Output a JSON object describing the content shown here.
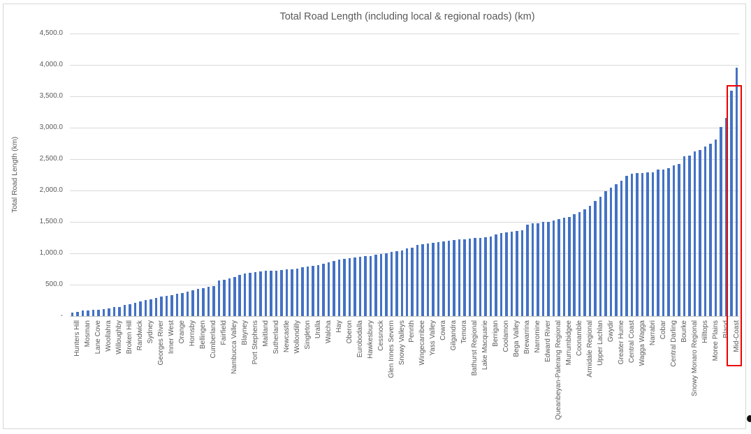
{
  "title": "Total Road Length (including local & regional roads) (km)",
  "y_axis": {
    "title": "Total Road Length (km)",
    "tick_labels": [
      "4,500.0",
      "4,000.0",
      "3,500.0",
      "3,000.0",
      "2,500.0",
      "2,000.0",
      "1,500.0",
      "1,000.0",
      "500.0",
      "-"
    ],
    "min": 0,
    "max": 4500,
    "step": 500
  },
  "highlight": {
    "shape": "red-rectangle",
    "around_label": "Mid-Coast",
    "color": "#ee0000"
  },
  "colors": {
    "bar": "#4472c4",
    "gridline": "#d9d9d9",
    "axis_text": "#595959",
    "frame_border": "#d6d6d6"
  },
  "chart_data": {
    "type": "bar",
    "title": "Total Road Length (including local & regional roads) (km)",
    "xlabel": "",
    "ylabel": "Total Road Length (km)",
    "ylim": [
      0,
      4500
    ],
    "grid": true,
    "legend": false,
    "label_interval": 2,
    "note": "128 ascending bars; axis labels shown under every 2nd bar (bars 2,4,...,128)",
    "x_tick_labels": [
      "Hunters Hill",
      "Mosman",
      "Lane Cove",
      "Woollahra",
      "Willoughby",
      "Broken Hill",
      "Randwick",
      "Sydney",
      "Georges River",
      "Inner West",
      "Orange",
      "Hornsby",
      "Bellingen",
      "Cumberland",
      "Fairfield",
      "Nambucca Valley",
      "Blayney",
      "Port Stephens",
      "Maitland",
      "Sutherland",
      "Newcastle",
      "Wollondilly",
      "Singleton",
      "Uralla",
      "Walcha",
      "Hay",
      "Oberon",
      "Eurobodalla",
      "Hawkesbury",
      "Cessnock",
      "Glen Innes Severn",
      "Snowy Valleys",
      "Penrith",
      "Wingecarribee",
      "Yass Valley",
      "Cowra",
      "Gilgandra",
      "Temora",
      "Bathurst Regional",
      "Lake Macquarie",
      "Berrigan",
      "Coolamon",
      "Bega Valley",
      "Brewarrina",
      "Narromine",
      "Edward River",
      "Queanbeyan-Palerang Regional",
      "Murrumbidgee",
      "Coonamble",
      "Armidale Regional",
      "Upper Lachlan",
      "Gwydir",
      "Greater Hume",
      "Central Coast",
      "Wagga Wagga",
      "Narrabri",
      "Cobar",
      "Central Darling",
      "Bourke",
      "Snowy Monaro Regional",
      "Hilltops",
      "Moree Plains",
      "Bland",
      "Mid-Coast"
    ],
    "values": [
      58,
      72,
      84,
      91,
      96,
      104,
      112,
      122,
      140,
      149,
      177,
      186,
      214,
      232,
      258,
      271,
      289,
      307,
      319,
      333,
      355,
      371,
      392,
      408,
      429,
      444,
      466,
      481,
      563,
      575,
      602,
      621,
      651,
      673,
      695,
      704,
      713,
      719,
      723,
      728,
      734,
      741,
      746,
      753,
      773,
      789,
      801,
      816,
      833,
      853,
      879,
      899,
      913,
      921,
      929,
      941,
      953,
      961,
      973,
      986,
      1006,
      1022,
      1036,
      1049,
      1079,
      1091,
      1131,
      1149,
      1161,
      1169,
      1179,
      1189,
      1199,
      1209,
      1219,
      1226,
      1233,
      1241,
      1249,
      1256,
      1269,
      1299,
      1319,
      1331,
      1341,
      1353,
      1366,
      1459,
      1473,
      1483,
      1496,
      1506,
      1519,
      1541,
      1563,
      1583,
      1619,
      1660,
      1700,
      1760,
      1830,
      1897,
      1993,
      2041,
      2100,
      2151,
      2231,
      2265,
      2274,
      2283,
      2287,
      2291,
      2333,
      2337,
      2356,
      2400,
      2420,
      2541,
      2560,
      2622,
      2640,
      2697,
      2741,
      2808,
      3011,
      3151,
      3593,
      3952
    ]
  }
}
